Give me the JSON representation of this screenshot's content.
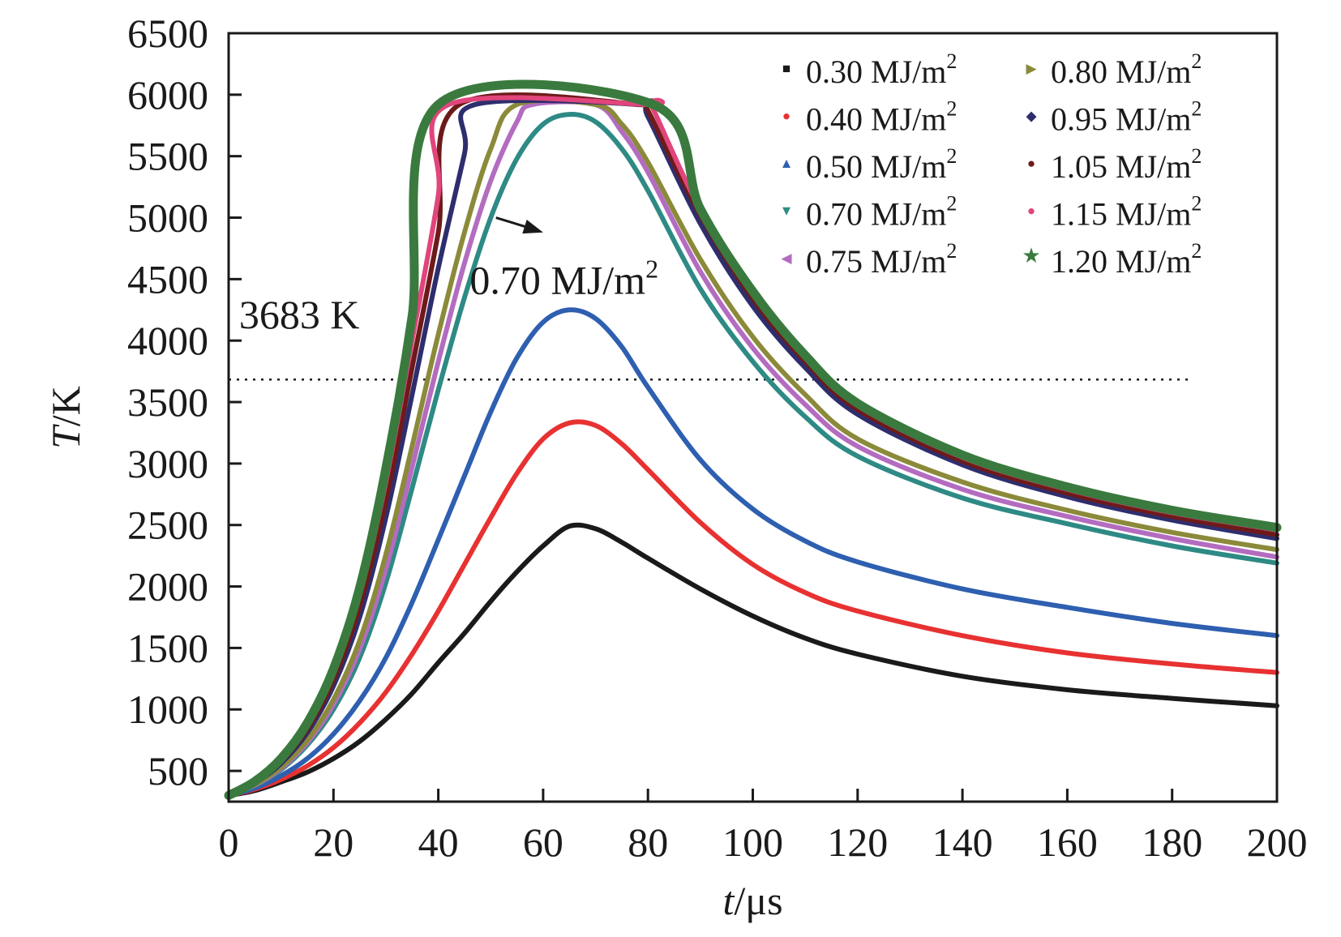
{
  "chart_data": {
    "type": "line",
    "xlabel_italic": "t",
    "xlabel_unit": "/μs",
    "ylabel_italic": "T",
    "ylabel_unit": "/K",
    "xlim": [
      0,
      200
    ],
    "ylim": [
      250,
      6500
    ],
    "x_ticks": [
      0,
      20,
      40,
      60,
      80,
      100,
      120,
      140,
      160,
      180,
      200
    ],
    "x_tick_labels": [
      "0",
      "20",
      "40",
      "60",
      "80",
      "100",
      "120",
      "140",
      "160",
      "180",
      "200"
    ],
    "y_ticks": [
      500,
      1000,
      1500,
      2000,
      2500,
      3000,
      3500,
      4000,
      4500,
      5000,
      5500,
      6000,
      6500
    ],
    "y_tick_labels": [
      "500",
      "1000",
      "1500",
      "2000",
      "2500",
      "3000",
      "3500",
      "4000",
      "4500",
      "5000",
      "5500",
      "6000",
      "6500"
    ],
    "grid": false,
    "legend_position": "top-right",
    "reference_line": {
      "y": 3683,
      "style": "dotted",
      "x_range": [
        0,
        184
      ]
    },
    "annotations": [
      {
        "text": "3683 K",
        "x": 2,
        "y": 4100
      },
      {
        "text": "0.70 MJ/m",
        "sup": "2",
        "x": 46,
        "y": 4380
      }
    ],
    "arrow": {
      "from": [
        51,
        5000
      ],
      "to": [
        60,
        4880
      ]
    },
    "series": [
      {
        "name": "0.30 MJ/m",
        "name_sup": "2",
        "color": "#1a1a1a",
        "marker": "■",
        "x": [
          0,
          5,
          10,
          15,
          20,
          25,
          30,
          35,
          40,
          45,
          50,
          55,
          60,
          65,
          70,
          75,
          80,
          90,
          100,
          110,
          120,
          140,
          160,
          180,
          200
        ],
        "y": [
          300,
          340,
          410,
          490,
          600,
          740,
          920,
          1130,
          1380,
          1620,
          1880,
          2120,
          2330,
          2490,
          2470,
          2360,
          2230,
          1980,
          1760,
          1580,
          1450,
          1270,
          1160,
          1090,
          1030
        ]
      },
      {
        "name": "0.40 MJ/m",
        "name_sup": "2",
        "color": "#e83131",
        "marker": "●",
        "x": [
          0,
          5,
          10,
          15,
          20,
          25,
          30,
          35,
          40,
          45,
          50,
          55,
          60,
          65,
          70,
          75,
          80,
          90,
          100,
          110,
          120,
          140,
          160,
          180,
          200
        ],
        "y": [
          300,
          350,
          430,
          540,
          690,
          890,
          1140,
          1450,
          1800,
          2180,
          2560,
          2920,
          3200,
          3330,
          3310,
          3160,
          2950,
          2520,
          2180,
          1950,
          1800,
          1600,
          1460,
          1370,
          1300
        ]
      },
      {
        "name": "0.50 MJ/m",
        "name_sup": "2",
        "color": "#2e5fb0",
        "marker": "▲",
        "x": [
          0,
          5,
          10,
          15,
          20,
          25,
          30,
          35,
          40,
          45,
          50,
          55,
          60,
          65,
          70,
          75,
          80,
          90,
          100,
          110,
          120,
          140,
          160,
          180,
          200
        ],
        "y": [
          300,
          360,
          460,
          600,
          800,
          1070,
          1420,
          1870,
          2380,
          2900,
          3420,
          3860,
          4150,
          4250,
          4180,
          3950,
          3620,
          3030,
          2630,
          2370,
          2200,
          1980,
          1830,
          1700,
          1600
        ]
      },
      {
        "name": "0.70 MJ/m",
        "name_sup": "2",
        "color": "#2e8a84",
        "marker": "▼",
        "x": [
          0,
          5,
          10,
          15,
          20,
          25,
          30,
          35,
          40,
          45,
          50,
          55,
          60,
          65,
          70,
          75,
          80,
          90,
          100,
          110,
          120,
          140,
          160,
          180,
          200
        ],
        "y": [
          300,
          380,
          510,
          710,
          1000,
          1420,
          2030,
          2800,
          3600,
          4350,
          5000,
          5480,
          5760,
          5840,
          5780,
          5560,
          5220,
          4420,
          3830,
          3380,
          3060,
          2720,
          2510,
          2330,
          2190
        ]
      },
      {
        "name": "0.75 MJ/m",
        "name_sup": "2",
        "color": "#b36cc0",
        "marker": "◀",
        "x": [
          0,
          5,
          10,
          15,
          20,
          25,
          30,
          35,
          40,
          45,
          50,
          55,
          58,
          70,
          75,
          80,
          90,
          100,
          110,
          120,
          140,
          160,
          180,
          200
        ],
        "y": [
          300,
          385,
          520,
          730,
          1040,
          1490,
          2140,
          2970,
          3830,
          4630,
          5300,
          5780,
          5920,
          5920,
          5700,
          5370,
          4560,
          3940,
          3480,
          3140,
          2790,
          2570,
          2390,
          2240
        ]
      },
      {
        "name": "0.80 MJ/m",
        "name_sup": "2",
        "color": "#8a8a3a",
        "marker": "▶",
        "x": [
          0,
          5,
          10,
          15,
          20,
          25,
          30,
          35,
          40,
          45,
          50,
          55,
          70,
          75,
          80,
          90,
          100,
          110,
          120,
          140,
          160,
          180,
          200
        ],
        "y": [
          300,
          390,
          530,
          750,
          1080,
          1560,
          2260,
          3140,
          4050,
          4880,
          5560,
          5920,
          5920,
          5760,
          5450,
          4660,
          4030,
          3560,
          3200,
          2850,
          2620,
          2440,
          2300
        ]
      },
      {
        "name": "0.95 MJ/m",
        "name_sup": "2",
        "color": "#2e2e6e",
        "marker": "◆",
        "x": [
          0,
          5,
          10,
          15,
          20,
          25,
          30,
          35,
          40,
          45,
          47,
          78,
          80,
          90,
          100,
          110,
          120,
          140,
          160,
          180,
          200
        ],
        "y": [
          300,
          400,
          560,
          810,
          1190,
          1750,
          2560,
          3560,
          4590,
          5520,
          5920,
          5920,
          5820,
          4950,
          4280,
          3780,
          3400,
          2990,
          2730,
          2540,
          2390
        ]
      },
      {
        "name": "1.05 MJ/m",
        "name_sup": "2",
        "color": "#6e1a1a",
        "marker": "●",
        "x": [
          0,
          5,
          10,
          15,
          20,
          25,
          30,
          35,
          40,
          44,
          79,
          80,
          90,
          100,
          110,
          120,
          140,
          160,
          180,
          200
        ],
        "y": [
          300,
          405,
          575,
          840,
          1240,
          1840,
          2700,
          3780,
          4880,
          5920,
          5920,
          5870,
          5020,
          4340,
          3830,
          3440,
          3020,
          2760,
          2570,
          2420
        ]
      },
      {
        "name": "1.15 MJ/m",
        "name_sup": "2",
        "color": "#e0457b",
        "marker": "●",
        "x": [
          0,
          5,
          10,
          15,
          20,
          25,
          30,
          35,
          40,
          42,
          80,
          81,
          90,
          100,
          110,
          120,
          140,
          160,
          180,
          200
        ],
        "y": [
          300,
          410,
          590,
          870,
          1290,
          1930,
          2850,
          4000,
          5180,
          5920,
          5920,
          5880,
          5060,
          4380,
          3860,
          3470,
          3050,
          2790,
          2600,
          2460
        ]
      },
      {
        "name": "1.20 MJ/m",
        "name_sup": "2",
        "color": "#3a7a3e",
        "marker": "★",
        "x": [
          0,
          5,
          10,
          15,
          20,
          25,
          30,
          35,
          40,
          81,
          90,
          100,
          110,
          120,
          140,
          160,
          180,
          200
        ],
        "y": [
          300,
          415,
          600,
          890,
          1330,
          1990,
          2960,
          4200,
          5920,
          5920,
          5070,
          4400,
          3880,
          3490,
          3070,
          2810,
          2620,
          2480
        ]
      }
    ]
  }
}
